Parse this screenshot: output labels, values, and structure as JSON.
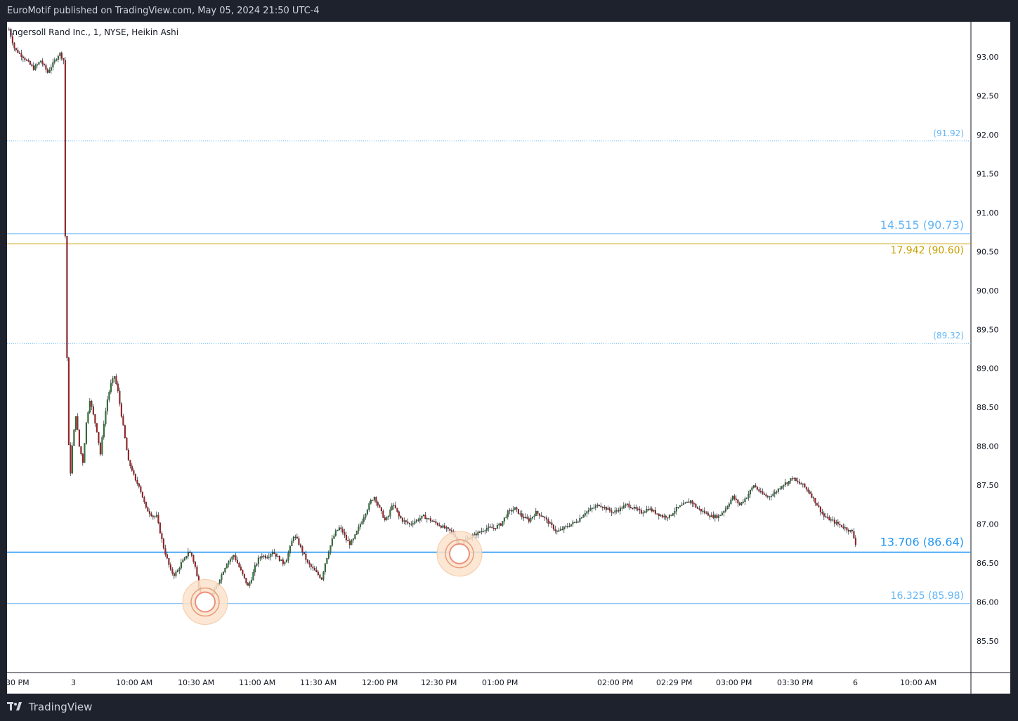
{
  "header": {
    "published": "EuroMotif published on TradingView.com, May 05, 2024 21:50 UTC-4"
  },
  "footer": {
    "brand": "TradingView"
  },
  "chart_data": {
    "type": "candlestick",
    "title": "Ingersoll Rand Inc., 1, NYSE, Heikin Ashi",
    "ylim": [
      85.0,
      93.45
    ],
    "y_ticks": [
      "93.00",
      "92.50",
      "92.00",
      "91.50",
      "91.00",
      "90.50",
      "90.00",
      "89.50",
      "89.00",
      "88.50",
      "88.00",
      "87.50",
      "87.00",
      "86.50",
      "86.00",
      "85.50"
    ],
    "x_ticks": [
      "30 PM",
      "3",
      "10:00 AM",
      "10:30 AM",
      "11:00 AM",
      "11:30 AM",
      "12:00 PM",
      "12:30 PM",
      "01:00 PM",
      "02:00 PM",
      "02:29 PM",
      "03:00 PM",
      "03:30 PM",
      "6",
      "10:00 AM"
    ],
    "levels": [
      {
        "label": "(91.92)",
        "price": 91.92,
        "style": "dotted",
        "color": "#64b5f6"
      },
      {
        "label": "14.515 (90.73)",
        "price": 90.73,
        "style": "solid",
        "color": "#64b5f6"
      },
      {
        "label": "17.942 (90.60)",
        "price": 90.6,
        "style": "solid",
        "color": "#c8a000"
      },
      {
        "label": "(89.32)",
        "price": 89.32,
        "style": "dotted",
        "color": "#64b5f6"
      },
      {
        "label": "13.706 (86.64)",
        "price": 86.64,
        "style": "solid",
        "color": "#2196f3"
      },
      {
        "label": "16.325 (85.98)",
        "price": 85.98,
        "style": "solid",
        "color": "#64b5f6"
      }
    ],
    "price_path": [
      [
        0,
        93.35
      ],
      [
        8,
        93.1
      ],
      [
        20,
        93.0
      ],
      [
        35,
        92.85
      ],
      [
        45,
        92.95
      ],
      [
        55,
        92.8
      ],
      [
        65,
        92.95
      ],
      [
        72,
        93.05
      ],
      [
        78,
        92.95
      ],
      [
        80,
        90.7
      ],
      [
        84,
        88.2
      ],
      [
        87,
        87.6
      ],
      [
        90,
        88.0
      ],
      [
        95,
        88.4
      ],
      [
        100,
        88.0
      ],
      [
        105,
        87.8
      ],
      [
        110,
        88.3
      ],
      [
        115,
        88.6
      ],
      [
        120,
        88.4
      ],
      [
        125,
        88.2
      ],
      [
        130,
        87.9
      ],
      [
        135,
        88.3
      ],
      [
        140,
        88.6
      ],
      [
        145,
        88.8
      ],
      [
        150,
        88.9
      ],
      [
        155,
        88.7
      ],
      [
        160,
        88.4
      ],
      [
        165,
        88.1
      ],
      [
        170,
        87.8
      ],
      [
        175,
        87.7
      ],
      [
        180,
        87.55
      ],
      [
        185,
        87.5
      ],
      [
        190,
        87.35
      ],
      [
        195,
        87.2
      ],
      [
        200,
        87.15
      ],
      [
        205,
        87.1
      ],
      [
        210,
        87.1
      ],
      [
        215,
        86.9
      ],
      [
        220,
        86.7
      ],
      [
        225,
        86.55
      ],
      [
        230,
        86.4
      ],
      [
        235,
        86.35
      ],
      [
        240,
        86.4
      ],
      [
        245,
        86.5
      ],
      [
        250,
        86.55
      ],
      [
        255,
        86.65
      ],
      [
        260,
        86.6
      ],
      [
        265,
        86.45
      ],
      [
        270,
        86.2
      ],
      [
        275,
        86.05
      ],
      [
        280,
        86.02
      ],
      [
        285,
        86.05
      ],
      [
        290,
        86.1
      ],
      [
        295,
        86.2
      ],
      [
        300,
        86.3
      ],
      [
        305,
        86.4
      ],
      [
        310,
        86.5
      ],
      [
        315,
        86.55
      ],
      [
        320,
        86.6
      ],
      [
        325,
        86.5
      ],
      [
        330,
        86.4
      ],
      [
        335,
        86.3
      ],
      [
        340,
        86.2
      ],
      [
        345,
        86.3
      ],
      [
        350,
        86.45
      ],
      [
        355,
        86.55
      ],
      [
        360,
        86.6
      ],
      [
        365,
        86.58
      ],
      [
        370,
        86.6
      ],
      [
        375,
        86.65
      ],
      [
        380,
        86.6
      ],
      [
        385,
        86.55
      ],
      [
        390,
        86.5
      ],
      [
        395,
        86.55
      ],
      [
        400,
        86.7
      ],
      [
        405,
        86.85
      ],
      [
        410,
        86.8
      ],
      [
        415,
        86.7
      ],
      [
        420,
        86.6
      ],
      [
        425,
        86.5
      ],
      [
        430,
        86.45
      ],
      [
        435,
        86.4
      ],
      [
        440,
        86.35
      ],
      [
        445,
        86.3
      ],
      [
        450,
        86.5
      ],
      [
        455,
        86.65
      ],
      [
        460,
        86.8
      ],
      [
        465,
        86.9
      ],
      [
        470,
        86.95
      ],
      [
        475,
        86.9
      ],
      [
        480,
        86.8
      ],
      [
        485,
        86.75
      ],
      [
        490,
        86.8
      ],
      [
        495,
        86.9
      ],
      [
        500,
        87.0
      ],
      [
        505,
        87.1
      ],
      [
        510,
        87.2
      ],
      [
        515,
        87.3
      ],
      [
        520,
        87.35
      ],
      [
        525,
        87.25
      ],
      [
        530,
        87.15
      ],
      [
        535,
        87.05
      ],
      [
        540,
        87.1
      ],
      [
        545,
        87.25
      ],
      [
        550,
        87.2
      ],
      [
        555,
        87.1
      ],
      [
        560,
        87.05
      ],
      [
        570,
        87.0
      ],
      [
        580,
        87.05
      ],
      [
        590,
        87.1
      ],
      [
        600,
        87.05
      ],
      [
        610,
        87.0
      ],
      [
        620,
        86.95
      ],
      [
        630,
        86.9
      ],
      [
        635,
        86.85
      ],
      [
        640,
        86.7
      ],
      [
        645,
        86.75
      ],
      [
        650,
        86.8
      ],
      [
        660,
        86.85
      ],
      [
        670,
        86.9
      ],
      [
        680,
        86.95
      ],
      [
        690,
        86.95
      ],
      [
        700,
        87.0
      ],
      [
        710,
        87.15
      ],
      [
        720,
        87.2
      ],
      [
        730,
        87.1
      ],
      [
        740,
        87.05
      ],
      [
        750,
        87.15
      ],
      [
        760,
        87.1
      ],
      [
        770,
        87.0
      ],
      [
        780,
        86.9
      ],
      [
        790,
        86.95
      ],
      [
        800,
        87.0
      ],
      [
        810,
        87.05
      ],
      [
        820,
        87.15
      ],
      [
        830,
        87.2
      ],
      [
        840,
        87.25
      ],
      [
        850,
        87.2
      ],
      [
        860,
        87.15
      ],
      [
        870,
        87.2
      ],
      [
        880,
        87.25
      ],
      [
        890,
        87.2
      ],
      [
        900,
        87.15
      ],
      [
        910,
        87.2
      ],
      [
        920,
        87.15
      ],
      [
        930,
        87.1
      ],
      [
        940,
        87.1
      ],
      [
        950,
        87.2
      ],
      [
        960,
        87.25
      ],
      [
        970,
        87.3
      ],
      [
        980,
        87.2
      ],
      [
        990,
        87.15
      ],
      [
        1000,
        87.1
      ],
      [
        1010,
        87.1
      ],
      [
        1020,
        87.2
      ],
      [
        1030,
        87.35
      ],
      [
        1040,
        87.25
      ],
      [
        1050,
        87.35
      ],
      [
        1060,
        87.5
      ],
      [
        1070,
        87.4
      ],
      [
        1080,
        87.35
      ],
      [
        1090,
        87.4
      ],
      [
        1100,
        87.5
      ],
      [
        1110,
        87.55
      ],
      [
        1115,
        87.6
      ],
      [
        1120,
        87.55
      ],
      [
        1130,
        87.5
      ],
      [
        1140,
        87.4
      ],
      [
        1150,
        87.25
      ],
      [
        1160,
        87.1
      ],
      [
        1170,
        87.05
      ],
      [
        1180,
        87.0
      ],
      [
        1190,
        86.95
      ],
      [
        1200,
        86.9
      ],
      [
        1205,
        86.75
      ]
    ],
    "markers": [
      {
        "time_index": 280,
        "price": 86.0
      },
      {
        "time_index": 642,
        "price": 86.62
      }
    ]
  }
}
